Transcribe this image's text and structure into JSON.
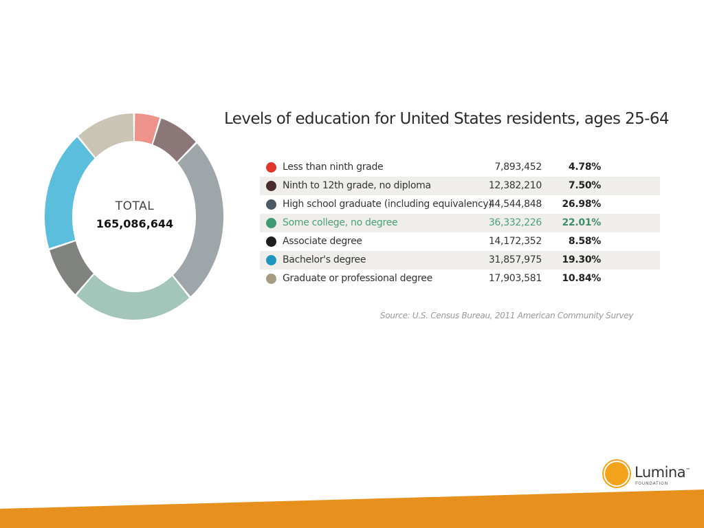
{
  "chart_data": {
    "type": "pie",
    "style": "donut",
    "title": "Levels of education for United States residents, ages 25-64",
    "total_label": "TOTAL",
    "total_value": "165,086,644",
    "source": "Source: U.S. Census Bureau, 2011 American Community Survey",
    "categories": [
      {
        "label": "Less than ninth grade",
        "count": "7,893,452",
        "value": 4.78,
        "percent_text": "4.78%",
        "dot_color": "#e0352b",
        "ring_color": "#ee938c"
      },
      {
        "label": "Ninth to 12th grade, no diploma",
        "count": "12,382,210",
        "value": 7.5,
        "percent_text": "7.50%",
        "dot_color": "#4a2b2e",
        "ring_color": "#8c7778"
      },
      {
        "label": "High school graduate (including equivalency)",
        "count": "44,544,848",
        "value": 26.98,
        "percent_text": "26.98%",
        "dot_color": "#4b5a63",
        "ring_color": "#9ea6aa"
      },
      {
        "label": "Some college, no degree",
        "count": "36,332,226",
        "value": 22.01,
        "percent_text": "22.01%",
        "dot_color": "#3e9a72",
        "ring_color": "#a4c5b9",
        "highlight": true
      },
      {
        "label": "Associate degree",
        "count": "14,172,352",
        "value": 8.58,
        "percent_text": "8.58%",
        "dot_color": "#1d1f1d",
        "ring_color": "#7f827d"
      },
      {
        "label": "Bachelor's degree",
        "count": "31,857,975",
        "value": 19.3,
        "percent_text": "19.30%",
        "dot_color": "#1e96c0",
        "ring_color": "#5bbedc"
      },
      {
        "label": "Graduate or professional degree",
        "count": "17,903,581",
        "value": 10.84,
        "percent_text": "10.84%",
        "dot_color": "#a69c82",
        "ring_color": "#c9c4b4"
      }
    ]
  },
  "brand": {
    "name": "Lumina",
    "trademark": "™",
    "tagline": "FOUNDATION",
    "sun_color": "#f2a31b",
    "band_color": "#e8901e"
  }
}
